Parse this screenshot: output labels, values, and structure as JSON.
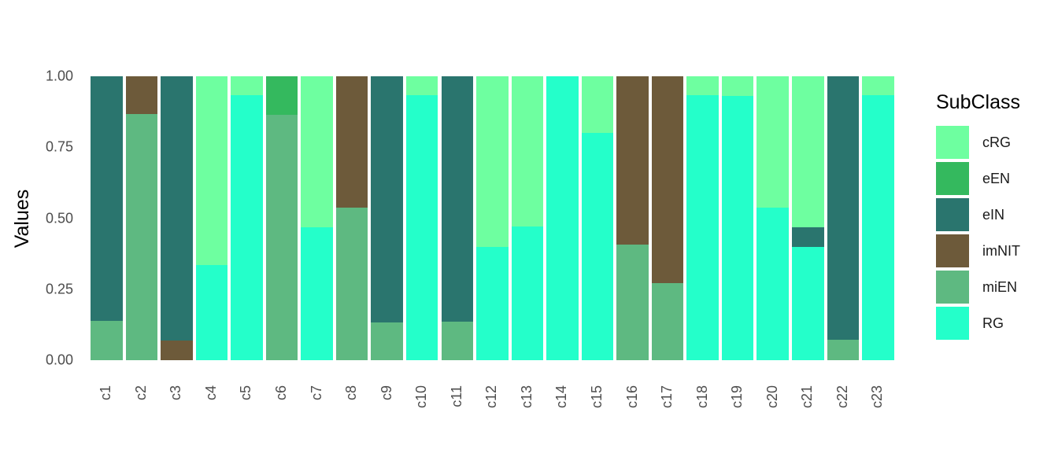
{
  "chart_data": {
    "type": "bar",
    "stacked": true,
    "normalized": true,
    "title": "",
    "xlabel": "",
    "ylabel": "Values",
    "ylim": [
      0,
      1
    ],
    "yticks": [
      "0.00",
      "0.25",
      "0.50",
      "0.75",
      "1.00"
    ],
    "grid": false,
    "legend_position": "right",
    "legend_title": "SubClass",
    "categories": [
      "c1",
      "c2",
      "c3",
      "c4",
      "c5",
      "c6",
      "c7",
      "c8",
      "c9",
      "c10",
      "c11",
      "c12",
      "c13",
      "c14",
      "c15",
      "c16",
      "c17",
      "c18",
      "c19",
      "c20",
      "c21",
      "c22",
      "c23"
    ],
    "series": [
      {
        "name": "cRG",
        "color": "#6EFFA0",
        "values": [
          0,
          0,
          0,
          0.664,
          0.066,
          0,
          0.532,
          0,
          0,
          0.066,
          0,
          0.6,
          0.528,
          0,
          0.199,
          0,
          0,
          0.066,
          0.068,
          0.462,
          0.532,
          0,
          0.066
        ]
      },
      {
        "name": "eEN",
        "color": "#34B95E",
        "values": [
          0,
          0,
          0,
          0,
          0,
          0.135,
          0,
          0,
          0,
          0,
          0,
          0,
          0,
          0,
          0,
          0,
          0,
          0,
          0,
          0,
          0,
          0,
          0
        ]
      },
      {
        "name": "eIN",
        "color": "#2A756E",
        "values": [
          0.861,
          0,
          0.93,
          0,
          0,
          0,
          0,
          0,
          0.866,
          0,
          0.863,
          0,
          0,
          0,
          0,
          0,
          0,
          0,
          0,
          0,
          0.068,
          0.927,
          0
        ]
      },
      {
        "name": "imNIT",
        "color": "#6D5A3A",
        "values": [
          0,
          0.133,
          0.07,
          0,
          0,
          0,
          0,
          0.462,
          0,
          0,
          0,
          0,
          0,
          0,
          0,
          0.592,
          0.728,
          0,
          0,
          0,
          0,
          0,
          0
        ]
      },
      {
        "name": "miEN",
        "color": "#5EB981",
        "values": [
          0.139,
          0.867,
          0,
          0,
          0,
          0.865,
          0,
          0.538,
          0.134,
          0,
          0.137,
          0,
          0,
          0,
          0,
          0.408,
          0.272,
          0,
          0,
          0,
          0,
          0.073,
          0
        ]
      },
      {
        "name": "RG",
        "color": "#24FFCA",
        "values": [
          0,
          0,
          0,
          0.336,
          0.934,
          0,
          0.468,
          0,
          0,
          0.934,
          0,
          0.4,
          0.472,
          1.0,
          0.801,
          0,
          0,
          0.934,
          0.932,
          0.538,
          0.4,
          0,
          0.934
        ]
      }
    ],
    "stack_order_bottom_to_top": [
      "RG",
      "miEN",
      "imNIT",
      "eIN",
      "eEN",
      "cRG"
    ]
  }
}
